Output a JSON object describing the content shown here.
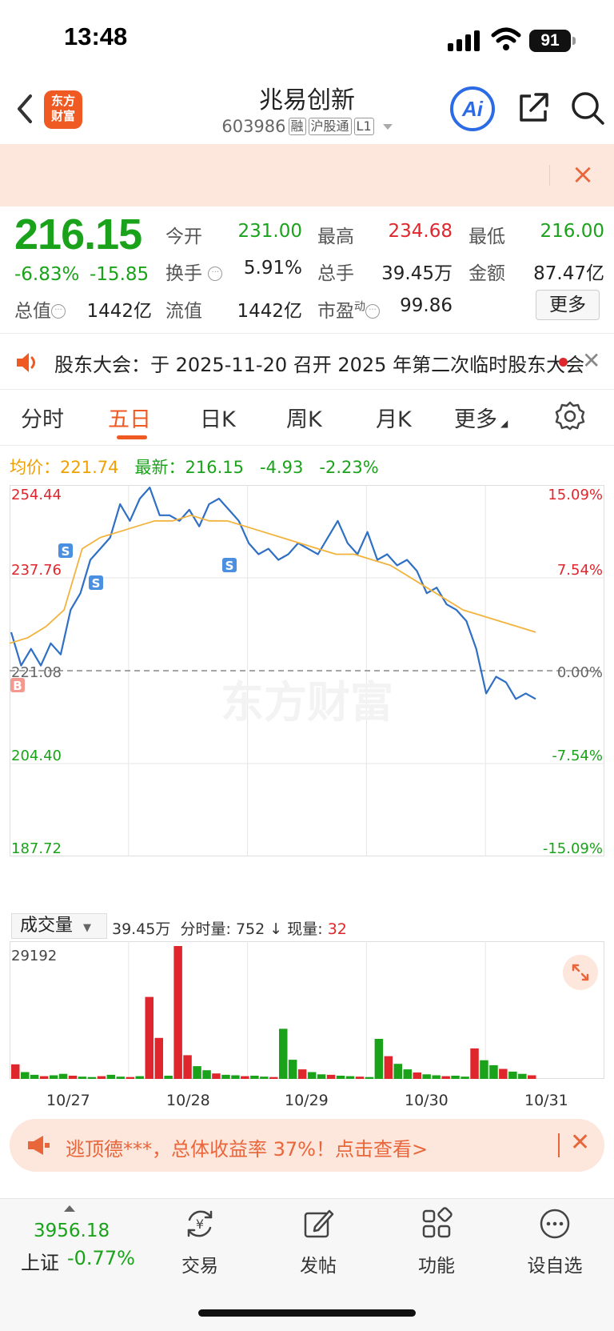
{
  "status_bar": {
    "time": "13:48",
    "battery": "91"
  },
  "nav": {
    "logo_text": "东方\n财富",
    "title": "兆易创新",
    "code": "603986",
    "tags": [
      "融",
      "沪股通",
      "L1"
    ],
    "ai_label": "Ai"
  },
  "quote": {
    "price": "216.15",
    "change_pct": "-6.83%",
    "change_val": "-15.85",
    "open_label": "今开",
    "open": "231.00",
    "high_label": "最高",
    "high": "234.68",
    "low_label": "最低",
    "low": "216.00",
    "turnover_label": "换手",
    "turnover": "5.91%",
    "volume_label": "总手",
    "volume": "39.45万",
    "amount_label": "金额",
    "amount": "87.47亿",
    "mktcap_label": "总值",
    "mktcap": "1442亿",
    "float_label": "流值",
    "float": "1442亿",
    "pe_label": "市盈",
    "pe_sup": "动",
    "pe": "99.86",
    "more_label": "更多"
  },
  "announcement": {
    "text": "股东大会：于 2025-11-20 召开 2025 年第二次临时股东大会"
  },
  "tabs": [
    {
      "label": "分时"
    },
    {
      "label": "五日"
    },
    {
      "label": "日K"
    },
    {
      "label": "周K"
    },
    {
      "label": "月K"
    },
    {
      "label": "更多"
    }
  ],
  "avg_row": {
    "avg_label": "均价：",
    "avg_value": "221.74",
    "latest_label": "最新：",
    "latest_value": "216.15",
    "change": "-4.93",
    "change_pct": "-2.23%"
  },
  "colors": {
    "up": "#e0262d",
    "down": "#1aa31a",
    "price_line": "#2f6fc4",
    "avg_line": "#f2b33d",
    "accent": "#ef5a23"
  },
  "chart_data": {
    "type": "line",
    "title": "",
    "y_left_ticks": [
      "254.44",
      "237.76",
      "221.08",
      "204.40",
      "187.72"
    ],
    "y_right_ticks": [
      "15.09%",
      "7.54%",
      "0.00%",
      "-7.54%",
      "-15.09%"
    ],
    "ylim": [
      187.72,
      254.44
    ],
    "reference": 221.08,
    "x_labels": [
      "10/27",
      "10/28",
      "10/29",
      "10/30",
      "10/31"
    ],
    "series": [
      {
        "values": [
          228,
          222,
          225,
          222,
          226,
          224,
          232,
          235,
          241,
          243,
          245,
          251,
          248,
          252,
          254,
          249,
          249,
          248,
          250,
          247,
          251,
          252,
          250,
          248,
          244,
          242,
          243,
          241,
          242,
          244,
          243,
          242,
          245,
          248,
          244,
          242,
          246,
          241,
          242,
          240,
          241,
          239,
          235,
          236,
          233,
          232,
          230,
          225,
          217,
          220,
          219,
          216,
          217,
          216
        ]
      },
      {
        "values": [
          226,
          227,
          229,
          232,
          243,
          245,
          246,
          247,
          248,
          248,
          249,
          248,
          248,
          247,
          246,
          245,
          244,
          243,
          242,
          242,
          241,
          240,
          238,
          236,
          234,
          232,
          231,
          230,
          229,
          228
        ]
      }
    ],
    "markers": [
      {
        "label": "B"
      },
      {
        "label": "S"
      },
      {
        "label": "S"
      },
      {
        "label": "S"
      }
    ],
    "volume": {
      "label": "成交量",
      "total": "39.45万",
      "tick_label": "分时量: 752",
      "now_label": "现量: ",
      "now_value": "32",
      "y_max": "29192",
      "values": [
        3200,
        1500,
        900,
        600,
        800,
        1100,
        700,
        500,
        400,
        600,
        900,
        500,
        400,
        600,
        18000,
        9000,
        700,
        29192,
        5200,
        2800,
        1900,
        1200,
        900,
        800,
        600,
        700,
        500,
        400,
        11000,
        4200,
        2100,
        1500,
        1000,
        900,
        700,
        600,
        500,
        400,
        8800,
        5000,
        3300,
        2100,
        1400,
        1000,
        800,
        600,
        700,
        500,
        6700,
        4100,
        3000,
        2200,
        1600,
        1100,
        800
      ]
    }
  },
  "watermark": "东方财富",
  "ad": {
    "text": "逃顶德***，总体收益率 37%！点击查看>"
  },
  "bottom_bar": {
    "index_value": "3956.18",
    "index_name": "上证",
    "index_change": "-0.77%",
    "items": [
      {
        "label": "交易"
      },
      {
        "label": "发帖"
      },
      {
        "label": "功能"
      },
      {
        "label": "设自选"
      }
    ]
  }
}
